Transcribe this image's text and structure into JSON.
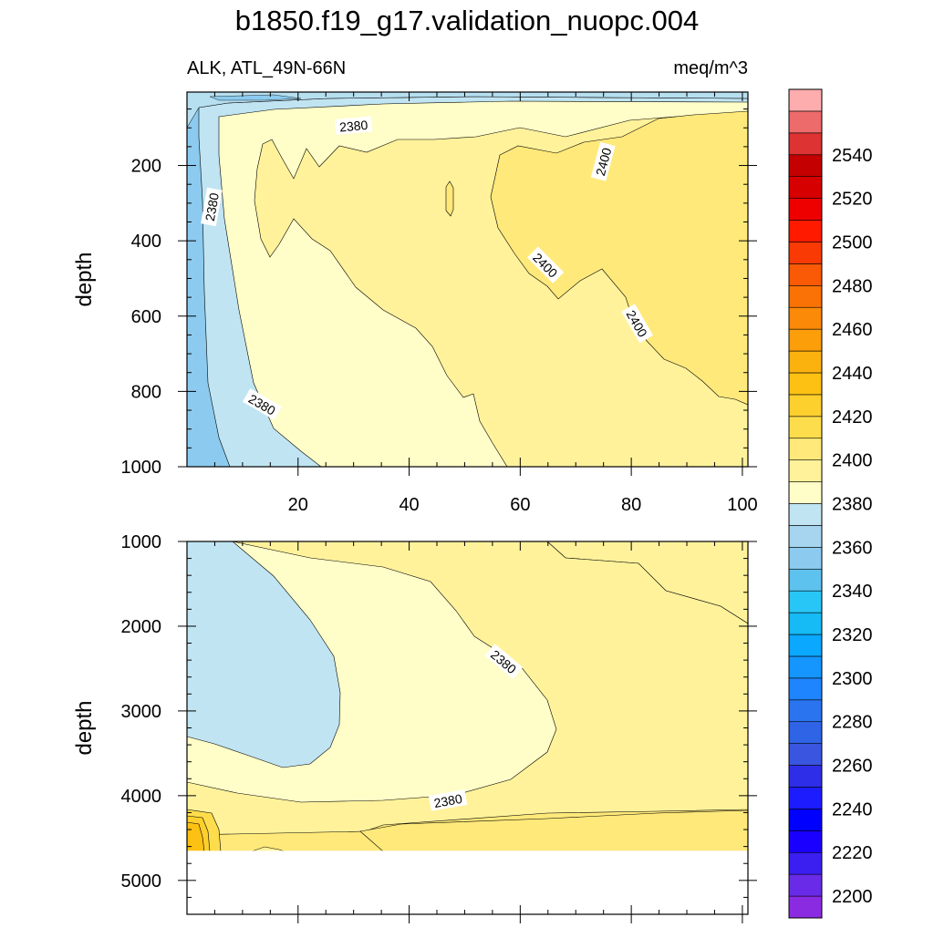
{
  "title": "b1850.f19_g17.validation_nuopc.004",
  "chart_data": [
    {
      "type": "contour",
      "panel": "upper",
      "variable_label": "ALK, ATL_49N-66N",
      "units_label": "meq/m^3",
      "xlabel": "",
      "ylabel": "depth",
      "xlim": [
        0,
        101
      ],
      "ylim": [
        1000,
        5
      ],
      "y_reversed": true,
      "xticks": [
        20,
        40,
        60,
        80,
        100
      ],
      "yticks": [
        200,
        400,
        600,
        800,
        1000
      ],
      "contour_labels": [
        {
          "value": "2380",
          "x": 30,
          "y": 95
        },
        {
          "value": "2380",
          "x": 4.5,
          "y": 310
        },
        {
          "value": "2380",
          "x": 13.5,
          "y": 835
        },
        {
          "value": "2400",
          "x": 75,
          "y": 190
        },
        {
          "value": "2400",
          "x": 64.5,
          "y": 465
        },
        {
          "value": "2400",
          "x": 81,
          "y": 620
        }
      ],
      "regions": [
        {
          "range": "2350-2360",
          "x_range": [
            0,
            6
          ],
          "y_range": [
            5,
            1000
          ]
        },
        {
          "range": "2370-2380",
          "x_range": [
            3,
            25
          ],
          "y_range": [
            60,
            1000
          ]
        },
        {
          "range": "2380-2390",
          "x_range": [
            6,
            60
          ],
          "y_range": [
            30,
            1000
          ]
        },
        {
          "range": "2390-2400",
          "x_range": [
            13,
            101
          ],
          "y_range": [
            130,
            1000
          ]
        },
        {
          "range": "2400-2410",
          "x_range": [
            54,
            101
          ],
          "y_range": [
            60,
            840
          ]
        }
      ]
    },
    {
      "type": "contour",
      "panel": "lower",
      "xlabel": "",
      "ylabel": "depth",
      "xlim": [
        0,
        101
      ],
      "ylim": [
        5400,
        1000
      ],
      "y_reversed": true,
      "yticks": [
        1000,
        2000,
        3000,
        4000,
        5000
      ],
      "contour_labels": [
        {
          "value": "2380",
          "x": 57,
          "y": 2420
        },
        {
          "value": "2380",
          "x": 47,
          "y": 4060
        }
      ],
      "regions": [
        {
          "range": "2360-2370",
          "x_range": [
            0,
            27
          ],
          "y_range": [
            1000,
            3700
          ]
        },
        {
          "range": "2370-2380",
          "x_range": [
            0,
            67
          ],
          "y_range": [
            1000,
            4200
          ]
        },
        {
          "range": "2380-2390",
          "x_range": [
            0,
            101
          ],
          "y_range": [
            1000,
            4650
          ]
        },
        {
          "range": "2390-2400",
          "x_range": [
            31,
            101
          ],
          "y_range": [
            1000,
            4650
          ]
        },
        {
          "range": "2400-2410",
          "x_range": [
            0,
            3
          ],
          "y_range": [
            4300,
            4650
          ]
        }
      ],
      "missing_below_depth": 4650
    }
  ],
  "colorbar": {
    "levels": [
      2190,
      2200,
      2210,
      2220,
      2230,
      2240,
      2250,
      2260,
      2270,
      2280,
      2290,
      2300,
      2310,
      2320,
      2330,
      2340,
      2350,
      2360,
      2370,
      2380,
      2390,
      2400,
      2410,
      2420,
      2430,
      2440,
      2450,
      2460,
      2470,
      2480,
      2490,
      2500,
      2510,
      2520,
      2530,
      2540,
      2550,
      2560
    ],
    "labeled": [
      2200,
      2220,
      2240,
      2260,
      2280,
      2300,
      2320,
      2340,
      2360,
      2380,
      2400,
      2420,
      2440,
      2460,
      2480,
      2500,
      2520,
      2540
    ],
    "colors": [
      "#8a2be2",
      "#6a2be8",
      "#3a1ff0",
      "#1a00ff",
      "#0000ff",
      "#1c1cff",
      "#2e2ee8",
      "#3a55e0",
      "#2f64e6",
      "#2b74f0",
      "#1f85ff",
      "#1596ff",
      "#0aa8ff",
      "#16bbf5",
      "#28c6f7",
      "#5dc2ee",
      "#8ccbef",
      "#a7d5f0",
      "#c0e4f2",
      "#fffdc8",
      "#fff29b",
      "#ffe97a",
      "#fedd4c",
      "#fdd02e",
      "#fdc113",
      "#fbb20e",
      "#fb9e0a",
      "#fb8a08",
      "#fa7206",
      "#fa5a05",
      "#fa3a04",
      "#ff1a00",
      "#ee0000",
      "#d70000",
      "#c40000",
      "#dd3333",
      "#ee6b6b",
      "#fdadad"
    ]
  }
}
